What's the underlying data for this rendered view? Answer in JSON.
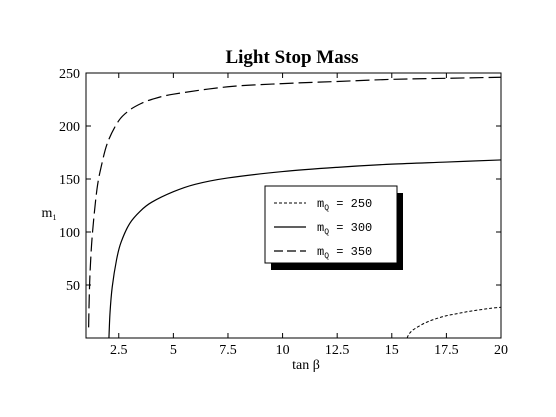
{
  "chart_data": {
    "type": "line",
    "title": "Light Stop Mass",
    "xlabel": "tan β",
    "ylabel": "m",
    "ylabel_sub": "1",
    "xlim": [
      1,
      20
    ],
    "ylim": [
      0,
      250
    ],
    "x_ticks": [
      2.5,
      5,
      7.5,
      10,
      12.5,
      15,
      17.5,
      20
    ],
    "x_tick_labels": [
      "2.5",
      "5",
      "7.5",
      "10",
      "12.5",
      "15",
      "17.5",
      "20"
    ],
    "y_ticks": [
      50,
      100,
      150,
      200,
      250
    ],
    "y_tick_labels": [
      "50",
      "100",
      "150",
      "200",
      "250"
    ],
    "grid": false,
    "legend_position": "center-right",
    "series": [
      {
        "name": "250",
        "style": "dotted",
        "x": [
          15.7,
          15.8,
          16.0,
          16.5,
          17.0,
          17.5,
          18.0,
          18.5,
          19.0,
          19.5,
          20.0
        ],
        "y": [
          0,
          4,
          8,
          14,
          18,
          21,
          23,
          25,
          26.5,
          28,
          29
        ]
      },
      {
        "name": "300",
        "style": "solid",
        "x": [
          2.05,
          2.1,
          2.2,
          2.4,
          2.6,
          3.0,
          3.5,
          4.0,
          5.0,
          6.0,
          7.5,
          10.0,
          12.5,
          15.0,
          17.5,
          20.0
        ],
        "y": [
          0,
          24,
          48,
          74,
          90,
          108,
          120,
          128,
          138,
          145,
          151,
          157,
          161,
          164,
          166,
          168
        ]
      },
      {
        "name": "350",
        "style": "dashed",
        "x": [
          1.12,
          1.15,
          1.2,
          1.3,
          1.5,
          1.7,
          2.0,
          2.5,
          3.0,
          3.5,
          4.0,
          5.0,
          7.5,
          10.0,
          12.5,
          15.0,
          17.5,
          20.0
        ],
        "y": [
          10,
          40,
          68,
          100,
          140,
          162,
          185,
          205,
          215,
          221,
          225,
          230,
          237,
          240,
          242,
          244,
          245,
          246
        ]
      }
    ],
    "legend": {
      "prefix": "m",
      "prefix_sub": "Q",
      "entries": [
        {
          "series": "250",
          "label": " = 250",
          "style": "dotted"
        },
        {
          "series": "300",
          "label": " = 300",
          "style": "solid"
        },
        {
          "series": "350",
          "label": " = 350",
          "style": "dashed"
        }
      ]
    }
  }
}
